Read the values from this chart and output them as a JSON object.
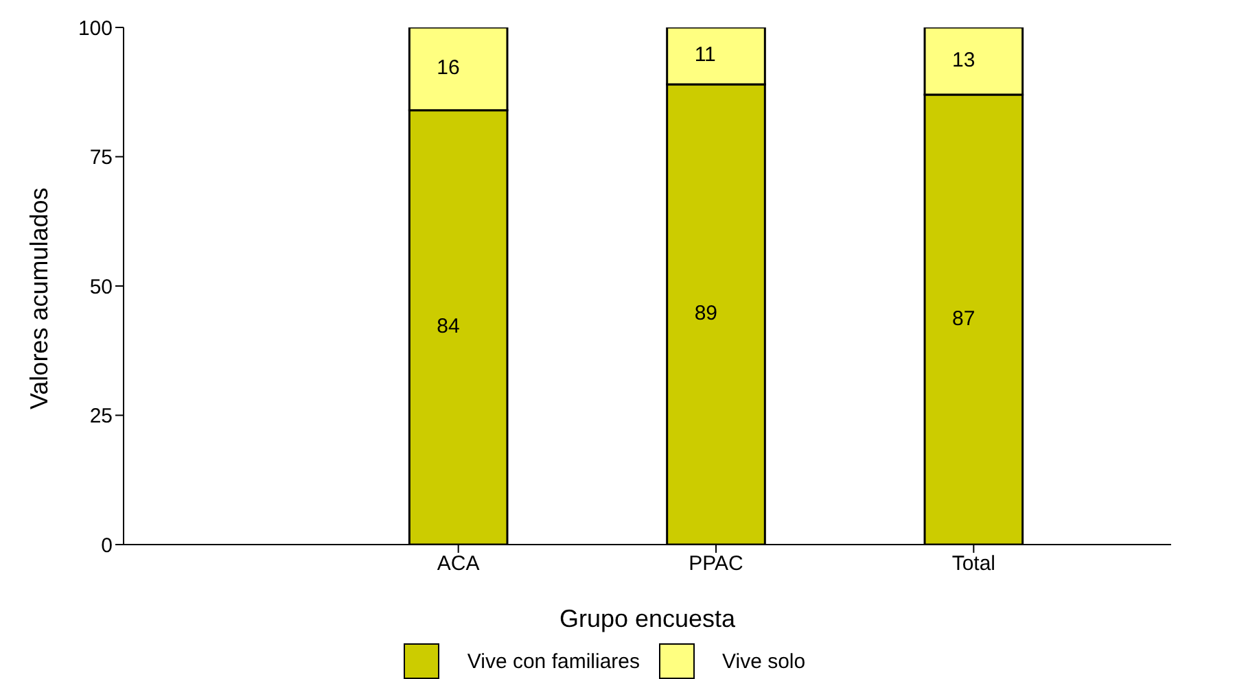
{
  "chart_data": {
    "type": "bar",
    "stacked": true,
    "xlabel": "Grupo encuesta",
    "ylabel": "Valores acumulados",
    "categories": [
      "ACA",
      "PPAC",
      "Total"
    ],
    "series": [
      {
        "name": "Vive con familiares",
        "color": "#cccc00",
        "values": [
          84,
          89,
          87
        ]
      },
      {
        "name": "Vive solo",
        "color": "#ffff80",
        "values": [
          16,
          11,
          13
        ]
      }
    ],
    "ylim": [
      0,
      100
    ],
    "yticks": [
      0,
      25,
      50,
      75,
      100
    ],
    "data_labels": true,
    "legend": "bottom",
    "grid": false
  }
}
